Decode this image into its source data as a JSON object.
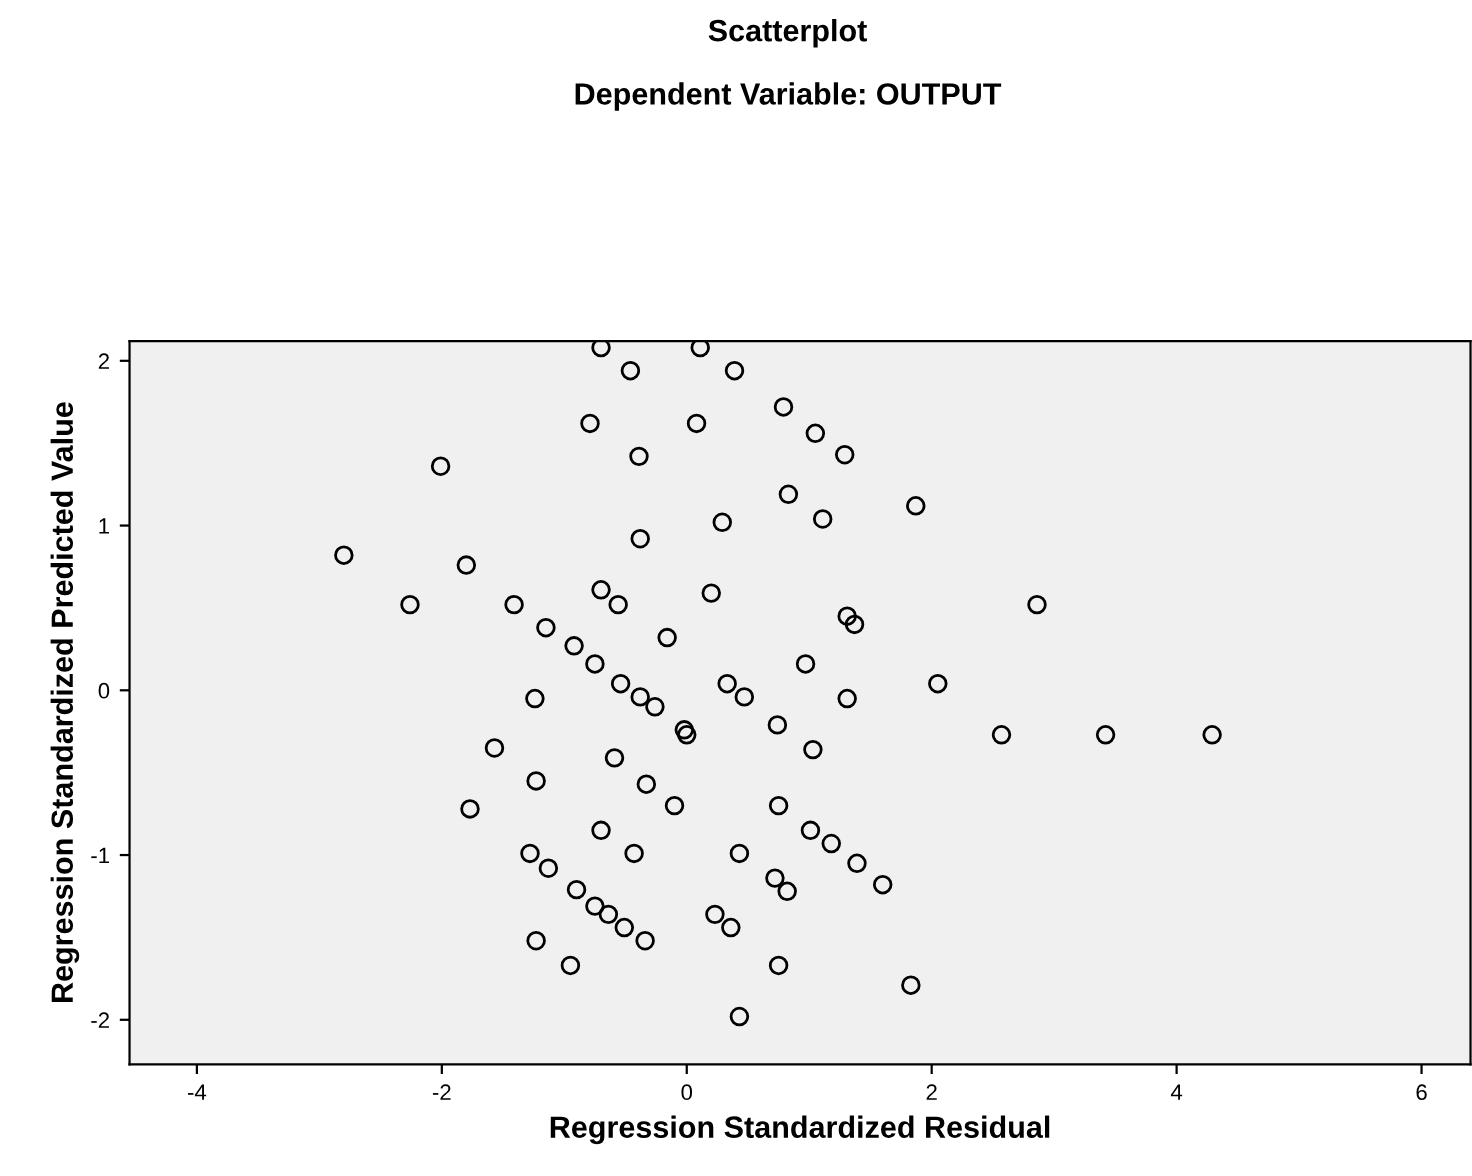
{
  "chart_data": {
    "type": "scatter",
    "title": "Scatterplot",
    "subtitle": "Dependent Variable: OUTPUT",
    "xlabel": "Regression Standardized Residual",
    "ylabel": "Regression Standardized Predicted Value",
    "xlim": [
      -4.55,
      6.4
    ],
    "xticks": [
      -4,
      -2,
      0,
      2,
      4,
      6
    ],
    "ylim": [
      -2.27,
      2.12
    ],
    "yticks": [
      -2,
      -1,
      0,
      1,
      2
    ],
    "grid": false,
    "legend": false,
    "marker": "circle",
    "series": [
      {
        "color": "#000000",
        "x": [
          -0.7,
          0.11,
          -0.46,
          0.39,
          -0.79,
          0.08,
          0.79,
          1.05,
          1.29,
          -2.01,
          -0.39,
          0.83,
          1.11,
          0.29,
          -0.38,
          -2.8,
          -1.8,
          -2.26,
          -1.41,
          -0.7,
          -0.56,
          0.2,
          1.31,
          1.37,
          -1.15,
          -0.16,
          -0.92,
          -0.75,
          0.97,
          -0.54,
          -0.38,
          -0.26,
          0.33,
          0.47,
          1.31,
          -1.24,
          1.87,
          2.86,
          2.05,
          2.57,
          3.42,
          4.29,
          1.03,
          1.01,
          1.18,
          1.39,
          1.6,
          1.83,
          -0.02,
          0.0,
          0.74,
          -1.57,
          -0.59,
          -1.23,
          -0.33,
          -0.1,
          -1.77,
          0.75,
          -0.7,
          -0.43,
          -1.28,
          -1.13,
          -0.9,
          -0.75,
          -0.64,
          -0.51,
          -0.34,
          0.43,
          0.72,
          0.82,
          0.23,
          0.36,
          -1.23,
          -0.95,
          0.75,
          0.43
        ],
        "values": [
          2.08,
          2.08,
          1.94,
          1.94,
          1.62,
          1.62,
          1.72,
          1.56,
          1.43,
          1.36,
          1.42,
          1.19,
          1.04,
          1.02,
          0.92,
          0.82,
          0.76,
          0.52,
          0.52,
          0.61,
          0.52,
          0.59,
          0.45,
          0.4,
          0.38,
          0.32,
          0.27,
          0.16,
          0.16,
          0.04,
          -0.04,
          -0.1,
          0.04,
          -0.04,
          -0.05,
          -0.05,
          1.12,
          0.52,
          0.04,
          -0.27,
          -0.27,
          -0.27,
          -0.36,
          -0.85,
          -0.93,
          -1.05,
          -1.18,
          -1.79,
          -0.24,
          -0.27,
          -0.21,
          -0.35,
          -0.41,
          -0.55,
          -0.57,
          -0.7,
          -0.72,
          -0.7,
          -0.85,
          -0.99,
          -0.99,
          -1.08,
          -1.21,
          -1.31,
          -1.36,
          -1.44,
          -1.52,
          -0.99,
          -1.14,
          -1.22,
          -1.36,
          -1.44,
          -1.52,
          -1.67,
          -1.67,
          -1.98
        ]
      }
    ]
  }
}
